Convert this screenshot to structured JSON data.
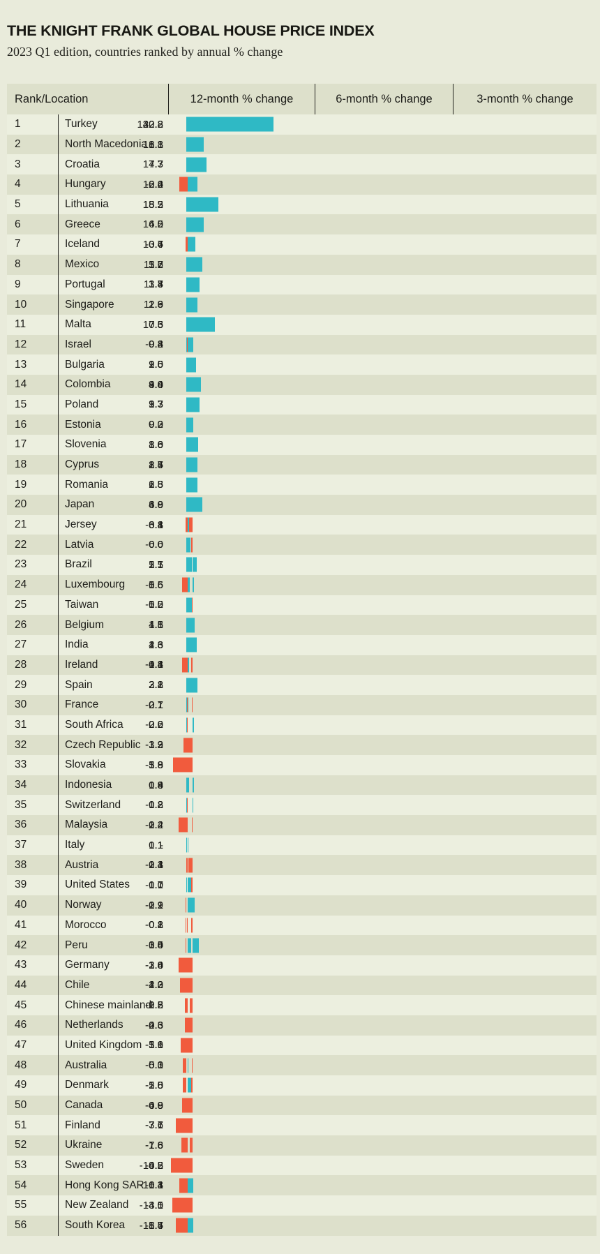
{
  "header": {
    "title": "THE KNIGHT FRANK GLOBAL HOUSE PRICE INDEX",
    "subtitle": "2023 Q1 edition, countries ranked by annual % change"
  },
  "colors": {
    "background": "#e9ebdb",
    "row_light": "#ecefdf",
    "row_dark": "#dde0cb",
    "positive_bar": "#2fb9c5",
    "negative_bar": "#f15b3d",
    "text": "#1d1d19"
  },
  "table": {
    "columns": [
      "Rank/Location",
      "12-month % change",
      "6-month % change",
      "3-month % change"
    ],
    "rows": [
      {
        "rank": "1",
        "location": "Turkey",
        "m12": "132.8",
        "m6": "40.8",
        "m3": "22.2"
      },
      {
        "rank": "2",
        "location": "North Macedonia",
        "m12": "18.8",
        "m6": "6.1",
        "m3": "1.3"
      },
      {
        "rank": "3",
        "location": "Croatia",
        "m12": "17.3",
        "m6": "7.7",
        "m3": "4.7"
      },
      {
        "rank": "4",
        "location": "Hungary",
        "m12": "16.6",
        "m6": "0.4",
        "m3": "-2.2"
      },
      {
        "rank": "5",
        "location": "Lithuania",
        "m12": "15.3",
        "m6": "13.5",
        "m3": "8.2"
      },
      {
        "rank": "6",
        "location": "Greece",
        "m12": "14.5",
        "m6": "6.2",
        "m3": "4.0"
      },
      {
        "rank": "7",
        "location": "Iceland",
        "m12": "13.4",
        "m6": "0.7",
        "m3": "-0.6"
      },
      {
        "rank": "8",
        "location": "Mexico",
        "m12": "11.7",
        "m6": "5.6",
        "m3": "3.2"
      },
      {
        "rank": "9",
        "location": "Portugal",
        "m12": "11.4",
        "m6": "3.8",
        "m3": "1.7"
      },
      {
        "rank": "10",
        "location": "Singapore",
        "m12": "11.3",
        "m6": "2.9",
        "m3": "2.6"
      },
      {
        "rank": "11",
        "location": "Malta",
        "m12": "10.5",
        "m6": "7.6",
        "m3": "7.3"
      },
      {
        "rank": "12",
        "location": "Israel",
        "m12": "9.8",
        "m6": "0.4",
        "m3": "-0.2"
      },
      {
        "rank": "13",
        "location": "Bulgaria",
        "m12": "9.5",
        "m6": "2.0",
        "m3": "1.6"
      },
      {
        "rank": "14",
        "location": "Colombia",
        "m12": "9.4",
        "m6": "4.8",
        "m3": "3.0"
      },
      {
        "rank": "15",
        "location": "Poland",
        "m12": "9.3",
        "m6": "3.7",
        "m3": "1.3"
      },
      {
        "rank": "16",
        "location": "Estonia",
        "m12": "9.2",
        "m6": "0.3",
        "m3": "0.0"
      },
      {
        "rank": "17",
        "location": "Slovenia",
        "m12": "8.8",
        "m6": "3.0",
        "m3": "1.6"
      },
      {
        "rank": "18",
        "location": "Cyprus",
        "m12": "8.5",
        "m6": "2.7",
        "m3": "1.4"
      },
      {
        "rank": "19",
        "location": "Romania",
        "m12": "6.8",
        "m6": "1.3",
        "m3": "2.5"
      },
      {
        "rank": "20",
        "location": "Japan",
        "m12": "6.8",
        "m6": "4.0",
        "m3": "3.9"
      },
      {
        "rank": "21",
        "location": "Jersey",
        "m12": "6.1",
        "m6": "-3.8",
        "m3": "0.4"
      },
      {
        "rank": "22",
        "location": "Latvia",
        "m12": "6.0",
        "m6": "-0.6",
        "m3": "0.0"
      },
      {
        "rank": "23",
        "location": "Brazil",
        "m12": "5.7",
        "m6": "2.5",
        "m3": "1.1"
      },
      {
        "rank": "24",
        "location": "Luxembourg",
        "m12": "5.6",
        "m6": "0.6",
        "m3": "-1.5"
      },
      {
        "rank": "25",
        "location": "Taiwan",
        "m12": "5.0",
        "m6": "-0.5",
        "m3": "1.2"
      },
      {
        "rank": "26",
        "location": "Belgium",
        "m12": "4.8",
        "m6": "1.1",
        "m3": "1.5"
      },
      {
        "rank": "27",
        "location": "India",
        "m12": "4.6",
        "m6": "2.3",
        "m3": "1.3"
      },
      {
        "rank": "28",
        "location": "Ireland",
        "m12": "4.1",
        "m6": "-0.8",
        "m3": "-1.4"
      },
      {
        "rank": "29",
        "location": "Spain",
        "m12": "3.1",
        "m6": "2.8",
        "m3": "2.2"
      },
      {
        "rank": "30",
        "location": "France",
        "m12": "2.7",
        "m6": "-0.1",
        "m3": "-0.1"
      },
      {
        "rank": "31",
        "location": "South Africa",
        "m12": "2.2",
        "m6": "0.6",
        "m3": "-0.0"
      },
      {
        "rank": "32",
        "location": "Czech Republic",
        "m12": "1.9",
        "m6": "-3.3",
        "m3": "-1.2"
      },
      {
        "rank": "33",
        "location": "Slovakia",
        "m12": "1.8",
        "m6": "-5.8",
        "m3": "-3.9"
      },
      {
        "rank": "34",
        "location": "Indonesia",
        "m12": "1.8",
        "m6": "0.9",
        "m3": "0.4"
      },
      {
        "rank": "35",
        "location": "Switzerland",
        "m12": "1.8",
        "m6": "0.2",
        "m3": "-0.2"
      },
      {
        "rank": "36",
        "location": "Malaysia",
        "m12": "1.2",
        "m6": "-0.2",
        "m3": "-2.4"
      },
      {
        "rank": "37",
        "location": "Italy",
        "m12": "1.1",
        "m6": "-",
        "m3": "0.1"
      },
      {
        "rank": "38",
        "location": "Austria",
        "m12": "1.1",
        "m6": "-2.3",
        "m3": "-0.4"
      },
      {
        "rank": "39",
        "location": "United States",
        "m12": "0.7",
        "m6": "-1.1",
        "m3": "1.0"
      },
      {
        "rank": "40",
        "location": "Norway",
        "m12": "-0.1",
        "m6": "-2.2",
        "m3": "1.9"
      },
      {
        "rank": "41",
        "location": "Morocco",
        "m12": "-0.1",
        "m6": "-0.8",
        "m3": "-0.2"
      },
      {
        "rank": "42",
        "location": "Peru",
        "m12": "-0.4",
        "m6": "3.5",
        "m3": "1.0"
      },
      {
        "rank": "43",
        "location": "Germany",
        "m12": "-1.0",
        "m6": "-3.8",
        "m3": "-2.4"
      },
      {
        "rank": "44",
        "location": "Chile",
        "m12": "-1.2",
        "m6": "-4.3",
        "m3": "-2.0"
      },
      {
        "rank": "45",
        "location": "Chinese mainland",
        "m12": "-2.2",
        "m6": "-1.5",
        "m3": "-0.8"
      },
      {
        "rank": "46",
        "location": "Netherlands",
        "m12": "-2.3",
        "m6": "-4.3",
        "m3": "-0.6"
      },
      {
        "rank": "47",
        "location": "United Kingdom",
        "m12": "-3.1",
        "m6": "-5.6",
        "m3": "-1.9"
      },
      {
        "rank": "48",
        "location": "Australia",
        "m12": "-5.0",
        "m6": "-0.3",
        "m3": "0.1"
      },
      {
        "rank": "49",
        "location": "Denmark",
        "m12": "-5.8",
        "m6": "-2.5",
        "m3": "1.0"
      },
      {
        "rank": "50",
        "location": "Canada",
        "m12": "-6.9",
        "m6": "-4.0",
        "m3": "-0.8"
      },
      {
        "rank": "51",
        "location": "Finland",
        "m12": "-7.6",
        "m6": "-7.7",
        "m3": "-3.1"
      },
      {
        "rank": "52",
        "location": "Ukraine",
        "m12": "-7.8",
        "m6": "-1.6",
        "m3": "-1.6"
      },
      {
        "rank": "53",
        "location": "Sweden",
        "m12": "-8.8",
        "m6": "-10.2",
        "m3": "-4.5"
      },
      {
        "rank": "54",
        "location": "Hong Kong SAR",
        "m12": "-10.3",
        "m6": "-6.1",
        "m3": "1.4"
      },
      {
        "rank": "55",
        "location": "New Zealand",
        "m12": "-13.0",
        "m6": "-4.5",
        "m3": "-4.1"
      },
      {
        "rank": "56",
        "location": "South Korea",
        "m12": "-15.7",
        "m6": "-8.5",
        "m3": "1.4"
      }
    ]
  },
  "chart_data": {
    "type": "bar",
    "orientation": "horizontal",
    "title": "THE KNIGHT FRANK GLOBAL HOUSE PRICE INDEX",
    "subtitle": "2023 Q1 edition, countries ranked by annual % change",
    "legend_position": "none",
    "grid": false,
    "positive_color": "#2fb9c5",
    "negative_color": "#f15b3d",
    "categories": [
      "Turkey",
      "North Macedonia",
      "Croatia",
      "Hungary",
      "Lithuania",
      "Greece",
      "Iceland",
      "Mexico",
      "Portugal",
      "Singapore",
      "Malta",
      "Israel",
      "Bulgaria",
      "Colombia",
      "Poland",
      "Estonia",
      "Slovenia",
      "Cyprus",
      "Romania",
      "Japan",
      "Jersey",
      "Latvia",
      "Brazil",
      "Luxembourg",
      "Taiwan",
      "Belgium",
      "India",
      "Ireland",
      "Spain",
      "France",
      "South Africa",
      "Czech Republic",
      "Slovakia",
      "Indonesia",
      "Switzerland",
      "Malaysia",
      "Italy",
      "Austria",
      "United States",
      "Norway",
      "Morocco",
      "Peru",
      "Germany",
      "Chile",
      "Chinese mainland",
      "Netherlands",
      "United Kingdom",
      "Australia",
      "Denmark",
      "Canada",
      "Finland",
      "Ukraine",
      "Sweden",
      "Hong Kong SAR",
      "New Zealand",
      "South Korea"
    ],
    "series": [
      {
        "name": "12-month % change",
        "values": [
          132.8,
          18.8,
          17.3,
          16.6,
          15.3,
          14.5,
          13.4,
          11.7,
          11.4,
          11.3,
          10.5,
          9.8,
          9.5,
          9.4,
          9.3,
          9.2,
          8.8,
          8.5,
          6.8,
          6.8,
          6.1,
          6.0,
          5.7,
          5.6,
          5.0,
          4.8,
          4.6,
          4.1,
          3.1,
          2.7,
          2.2,
          1.9,
          1.8,
          1.8,
          1.8,
          1.2,
          1.1,
          1.1,
          0.7,
          -0.1,
          -0.1,
          -0.4,
          -1.0,
          -1.2,
          -2.2,
          -2.3,
          -3.1,
          -5.0,
          -5.8,
          -6.9,
          -7.6,
          -7.8,
          -8.8,
          -10.3,
          -13.0,
          -15.7
        ]
      },
      {
        "name": "6-month % change",
        "values": [
          40.8,
          6.1,
          7.7,
          0.4,
          13.5,
          6.2,
          0.7,
          5.6,
          3.8,
          2.9,
          7.6,
          0.4,
          2.0,
          4.8,
          3.7,
          0.3,
          3.0,
          2.7,
          1.3,
          4.0,
          -3.8,
          -0.6,
          2.5,
          0.6,
          -0.5,
          1.1,
          2.3,
          -0.8,
          2.8,
          -0.1,
          0.6,
          -3.3,
          -5.8,
          0.9,
          0.2,
          -0.2,
          null,
          -2.3,
          -1.1,
          -2.2,
          -0.8,
          3.5,
          -3.8,
          -4.3,
          -1.5,
          -4.3,
          -5.6,
          -0.3,
          -2.5,
          -4.0,
          -7.7,
          -1.6,
          -10.2,
          -6.1,
          -4.5,
          -8.5
        ]
      },
      {
        "name": "3-month % change",
        "values": [
          22.2,
          1.3,
          4.7,
          -2.2,
          8.2,
          4.0,
          -0.6,
          3.2,
          1.7,
          2.6,
          7.3,
          -0.2,
          1.6,
          3.0,
          1.3,
          0.0,
          1.6,
          1.4,
          2.5,
          3.9,
          0.4,
          0.0,
          1.1,
          -1.5,
          1.2,
          1.5,
          1.3,
          -1.4,
          2.2,
          -0.1,
          -0.0,
          -1.2,
          -3.9,
          0.4,
          -0.2,
          -2.4,
          0.1,
          -0.4,
          1.0,
          1.9,
          -0.2,
          1.0,
          -2.4,
          -2.0,
          -0.8,
          -0.6,
          -1.9,
          0.1,
          1.0,
          -0.8,
          -3.1,
          -1.6,
          -4.5,
          1.4,
          -4.1,
          1.4
        ]
      }
    ]
  }
}
